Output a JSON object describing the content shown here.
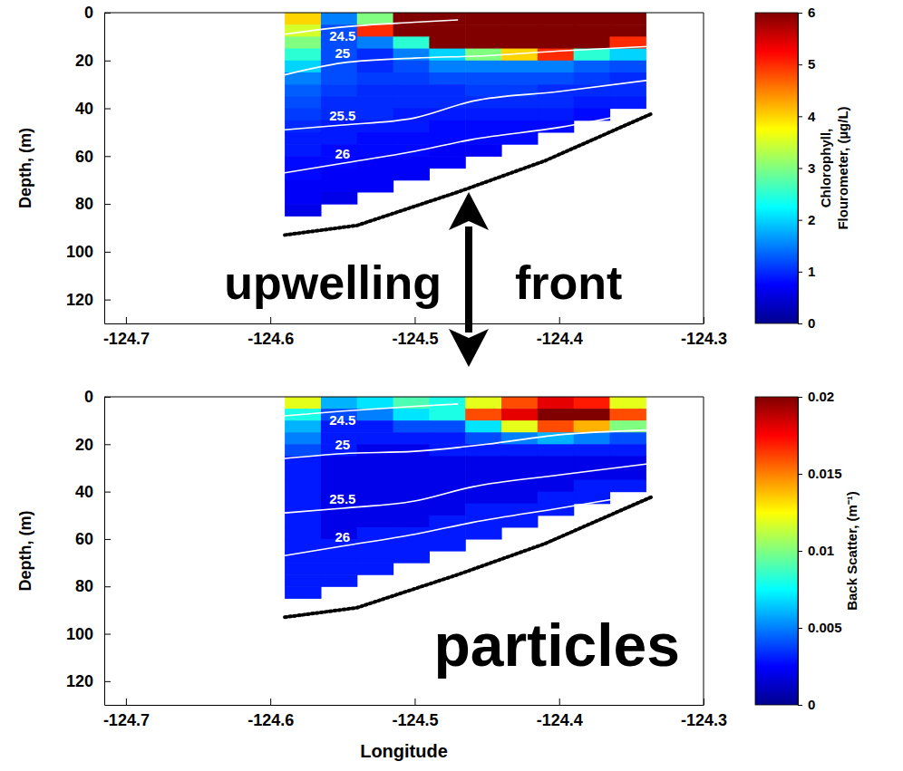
{
  "chart_data": [
    {
      "type": "heatmap",
      "y_label": "Depth, (m)",
      "xlim": [
        -124.715,
        -124.3
      ],
      "xticks": [
        -124.7,
        -124.6,
        -124.5,
        -124.4,
        -124.3
      ],
      "ylim": [
        0,
        130
      ],
      "yticks": [
        0,
        20,
        40,
        60,
        80,
        100,
        120
      ],
      "color_label": "Chlorophyll, Flourometer, (µg/L)",
      "color_range": [
        0,
        6
      ],
      "color_ticks": [
        0,
        1,
        2,
        3,
        4,
        5,
        6
      ],
      "x_edges": [
        -124.59,
        -124.565,
        -124.54,
        -124.515,
        -124.49,
        -124.465,
        -124.44,
        -124.415,
        -124.39,
        -124.365,
        -124.34
      ],
      "y_edges": [
        0,
        5,
        10,
        15,
        20,
        25,
        30,
        35,
        40,
        45,
        50,
        55,
        60,
        65,
        70,
        75,
        80,
        85
      ],
      "values": [
        [
          4,
          1.5,
          3,
          6,
          6,
          6,
          6,
          6,
          6,
          6
        ],
        [
          3.5,
          1.2,
          5,
          6,
          6,
          6,
          6,
          6,
          6,
          6
        ],
        [
          3,
          1.2,
          1.5,
          2.5,
          6,
          6,
          6,
          6,
          6,
          5
        ],
        [
          2.5,
          1.2,
          1,
          1.5,
          2,
          3,
          4,
          5,
          2.5,
          2
        ],
        [
          2,
          1.2,
          1,
          1.2,
          1.5,
          1.5,
          1.5,
          1.5,
          1.3,
          1.2
        ],
        [
          1.5,
          1.2,
          1.1,
          1.1,
          1.2,
          1.2,
          1.2,
          1.2,
          1.1,
          1
        ],
        [
          1.3,
          1.1,
          1,
          1,
          1,
          1.1,
          1.1,
          1,
          1,
          1
        ],
        [
          1.2,
          1,
          1,
          1,
          1,
          1,
          1,
          1,
          0.9,
          0.9
        ],
        [
          1.1,
          1,
          1,
          0.9,
          0.9,
          0.9,
          0.9,
          0.9,
          0.8,
          null
        ],
        [
          1,
          0.9,
          0.9,
          0.9,
          0.8,
          0.8,
          0.8,
          0.8,
          null,
          null
        ],
        [
          0.9,
          0.9,
          0.8,
          0.8,
          0.8,
          0.8,
          0.8,
          null,
          null,
          null
        ],
        [
          0.9,
          0.8,
          0.8,
          0.8,
          0.7,
          0.7,
          null,
          null,
          null,
          null
        ],
        [
          0.8,
          0.8,
          0.7,
          0.7,
          0.7,
          null,
          null,
          null,
          null,
          null
        ],
        [
          0.8,
          0.7,
          0.7,
          0.7,
          null,
          null,
          null,
          null,
          null,
          null
        ],
        [
          0.7,
          0.7,
          0.7,
          null,
          null,
          null,
          null,
          null,
          null,
          null
        ],
        [
          0.7,
          0.6,
          null,
          null,
          null,
          null,
          null,
          null,
          null,
          null
        ],
        [
          0.6,
          null,
          null,
          null,
          null,
          null,
          null,
          null,
          null,
          null
        ]
      ],
      "contours": [
        {
          "level": 24.5,
          "lon": [
            -124.59,
            -124.55,
            -124.5,
            -124.47
          ],
          "depth": [
            9,
            6,
            4,
            3
          ]
        },
        {
          "level": 25,
          "lon": [
            -124.59,
            -124.55,
            -124.5,
            -124.45,
            -124.4,
            -124.335
          ],
          "depth": [
            26,
            21,
            19,
            18,
            16,
            14
          ]
        },
        {
          "level": 25.5,
          "lon": [
            -124.59,
            -124.55,
            -124.5,
            -124.46,
            -124.4,
            -124.335
          ],
          "depth": [
            49,
            47,
            44,
            37,
            33,
            28
          ]
        },
        {
          "level": 26,
          "lon": [
            -124.59,
            -124.55,
            -124.5,
            -124.46,
            -124.4,
            -124.34
          ],
          "depth": [
            67,
            63,
            58,
            53,
            48,
            41
          ]
        }
      ],
      "seafloor": {
        "lon": [
          -124.59,
          -124.54,
          -124.47,
          -124.41,
          -124.335
        ],
        "depth": [
          93,
          89,
          75,
          62,
          42
        ]
      }
    },
    {
      "type": "heatmap",
      "x_label": "Longitude",
      "y_label": "Depth, (m)",
      "xlim": [
        -124.715,
        -124.3
      ],
      "xticks": [
        -124.7,
        -124.6,
        -124.5,
        -124.4,
        -124.3
      ],
      "ylim": [
        0,
        130
      ],
      "yticks": [
        0,
        20,
        40,
        60,
        80,
        100,
        120
      ],
      "color_label": "Back Scatter, (m⁻¹)",
      "color_range": [
        0,
        0.02
      ],
      "color_ticks": [
        0,
        0.005,
        0.01,
        0.015,
        0.02
      ],
      "x_edges": [
        -124.59,
        -124.565,
        -124.54,
        -124.515,
        -124.49,
        -124.465,
        -124.44,
        -124.415,
        -124.39,
        -124.365,
        -124.34
      ],
      "y_edges": [
        0,
        5,
        10,
        15,
        20,
        25,
        30,
        35,
        40,
        45,
        50,
        55,
        60,
        65,
        70,
        75,
        80,
        85
      ],
      "values": [
        [
          0.012,
          0.006,
          0.007,
          0.009,
          0.008,
          0.012,
          0.016,
          0.018,
          0.017,
          0.012
        ],
        [
          0.008,
          0.004,
          0.005,
          0.007,
          0.008,
          0.016,
          0.018,
          0.02,
          0.02,
          0.016
        ],
        [
          0.006,
          0.003,
          0.003,
          0.004,
          0.004,
          0.007,
          0.012,
          0.016,
          0.014,
          0.01
        ],
        [
          0.005,
          0.003,
          0.003,
          0.003,
          0.003,
          0.004,
          0.005,
          0.006,
          0.005,
          0.004
        ],
        [
          0.004,
          0.003,
          0.002,
          0.002,
          0.003,
          0.003,
          0.003,
          0.003,
          0.003,
          0.003
        ],
        [
          0.003,
          0.002,
          0.002,
          0.002,
          0.002,
          0.002,
          0.002,
          0.002,
          0.002,
          0.002
        ],
        [
          0.003,
          0.002,
          0.002,
          0.002,
          0.002,
          0.002,
          0.002,
          0.002,
          0.002,
          0.002
        ],
        [
          0.003,
          0.002,
          0.002,
          0.002,
          0.002,
          0.002,
          0.002,
          0.002,
          0.003,
          0.003
        ],
        [
          0.003,
          0.002,
          0.002,
          0.002,
          0.002,
          0.002,
          0.002,
          0.003,
          0.003,
          null
        ],
        [
          0.003,
          0.002,
          0.002,
          0.002,
          0.002,
          0.003,
          0.003,
          0.003,
          null,
          null
        ],
        [
          0.003,
          0.002,
          0.002,
          0.002,
          0.003,
          0.003,
          0.003,
          null,
          null,
          null
        ],
        [
          0.003,
          0.002,
          0.003,
          0.003,
          0.003,
          0.003,
          null,
          null,
          null,
          null
        ],
        [
          0.003,
          0.003,
          0.003,
          0.003,
          0.003,
          null,
          null,
          null,
          null,
          null
        ],
        [
          0.003,
          0.003,
          0.003,
          0.003,
          null,
          null,
          null,
          null,
          null,
          null
        ],
        [
          0.003,
          0.003,
          0.003,
          null,
          null,
          null,
          null,
          null,
          null,
          null
        ],
        [
          0.003,
          0.003,
          null,
          null,
          null,
          null,
          null,
          null,
          null,
          null
        ],
        [
          0.003,
          null,
          null,
          null,
          null,
          null,
          null,
          null,
          null,
          null
        ]
      ],
      "contours": [
        {
          "level": 24.5,
          "lon": [
            -124.59,
            -124.55,
            -124.5,
            -124.47
          ],
          "depth": [
            8,
            6,
            4,
            3
          ]
        },
        {
          "level": 25,
          "lon": [
            -124.59,
            -124.55,
            -124.5,
            -124.45,
            -124.4,
            -124.335
          ],
          "depth": [
            26,
            24,
            23,
            20,
            16,
            14
          ]
        },
        {
          "level": 25.5,
          "lon": [
            -124.59,
            -124.55,
            -124.5,
            -124.46,
            -124.4,
            -124.335
          ],
          "depth": [
            49,
            47,
            44,
            38,
            33,
            28
          ]
        },
        {
          "level": 26,
          "lon": [
            -124.59,
            -124.55,
            -124.5,
            -124.46,
            -124.4,
            -124.34
          ],
          "depth": [
            67,
            63,
            58,
            53,
            47,
            41
          ]
        }
      ],
      "seafloor": {
        "lon": [
          -124.59,
          -124.54,
          -124.47,
          -124.41,
          -124.335
        ],
        "depth": [
          93,
          89,
          75,
          62,
          42
        ]
      }
    }
  ],
  "annotations": [
    "upwelling",
    "front",
    "particles"
  ]
}
